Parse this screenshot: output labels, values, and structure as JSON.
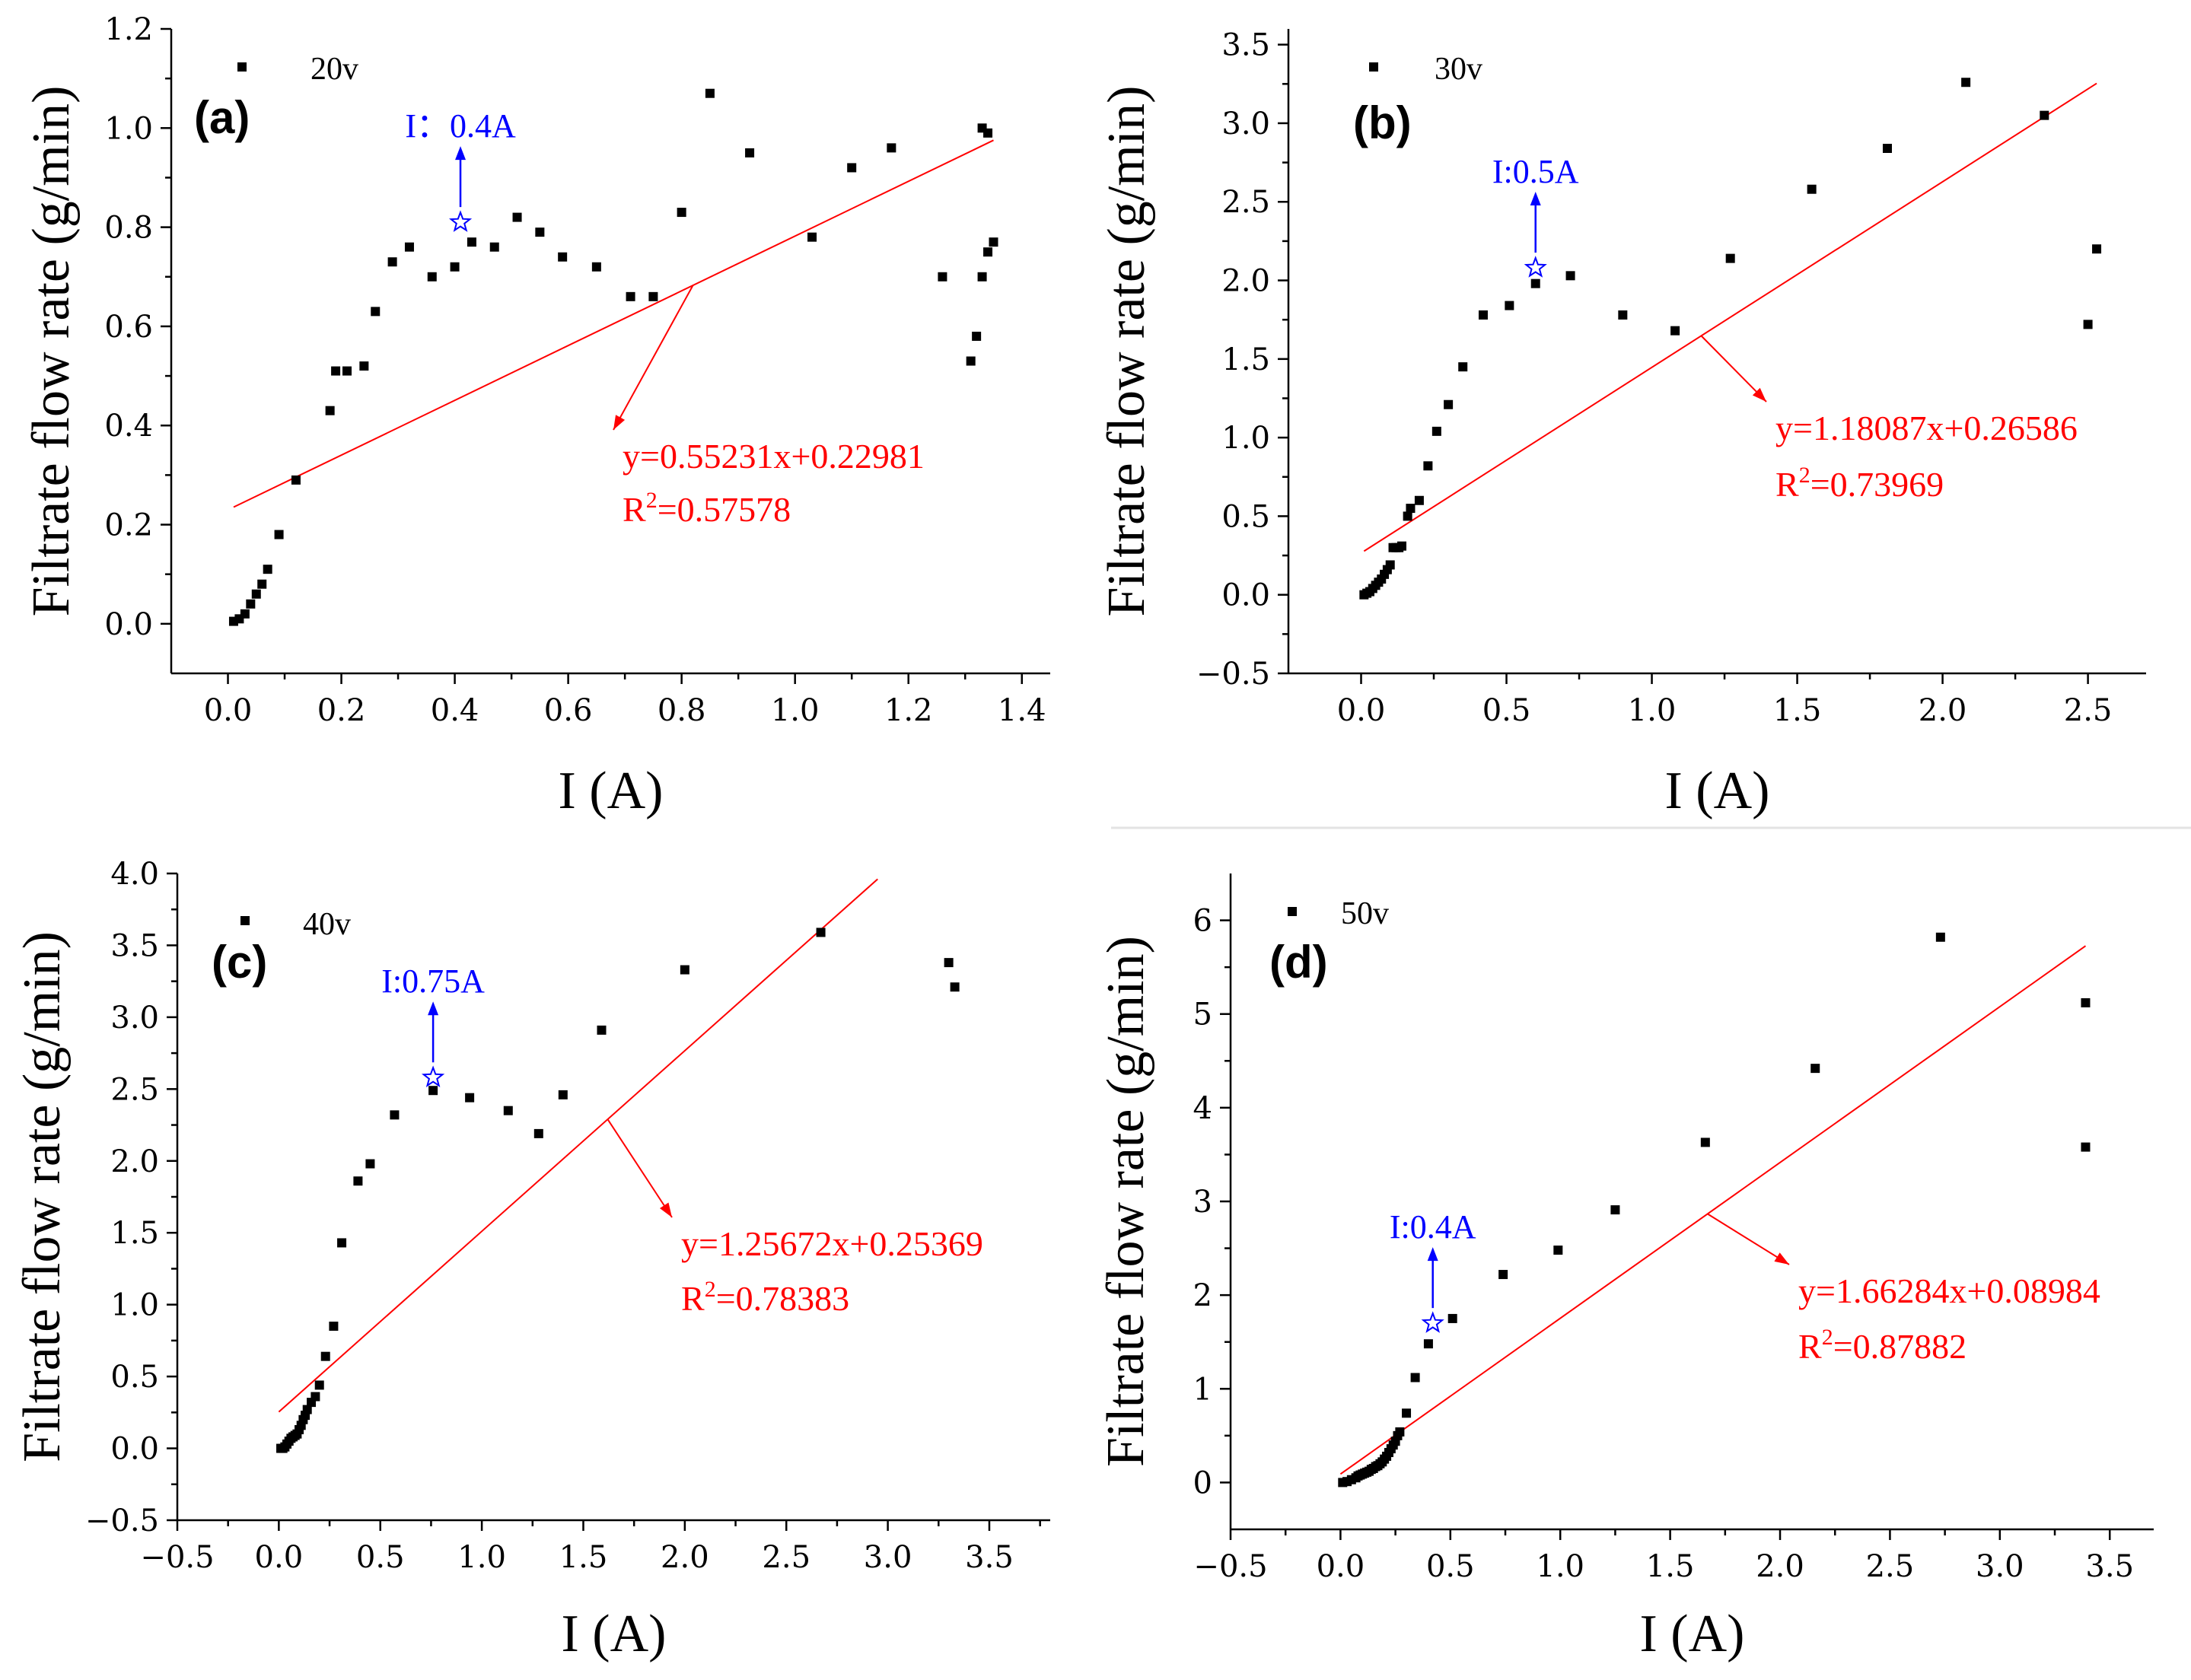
{
  "chart_data": [
    {
      "panel": "(a)",
      "type": "scatter",
      "legend": "20v",
      "xlabel": "I (A)",
      "ylabel": "Filtrate flow rate (g/min)",
      "xlim": [
        -0.1,
        1.45
      ],
      "ylim": [
        -0.1,
        1.2
      ],
      "xticks": [
        0.0,
        0.2,
        0.4,
        0.6,
        0.8,
        1.0,
        1.2,
        1.4
      ],
      "xtick_labels": [
        "0.0",
        "0.2",
        "0.4",
        "0.6",
        "0.8",
        "1.0",
        "1.2",
        "1.4"
      ],
      "yticks": [
        0.0,
        0.2,
        0.4,
        0.6,
        0.8,
        1.0,
        1.2
      ],
      "ytick_labels": [
        "0.0",
        "0.2",
        "0.4",
        "0.6",
        "0.8",
        "1.0",
        "1.2"
      ],
      "series": [
        {
          "name": "20v",
          "x": [
            0.01,
            0.02,
            0.03,
            0.04,
            0.05,
            0.06,
            0.07,
            0.09,
            0.12,
            0.18,
            0.19,
            0.21,
            0.24,
            0.26,
            0.29,
            0.32,
            0.36,
            0.4,
            0.43,
            0.47,
            0.51,
            0.55,
            0.59,
            0.65,
            0.71,
            0.75,
            0.8,
            0.85,
            0.92,
            1.03,
            1.1,
            1.17,
            1.26,
            1.31,
            1.32,
            1.33,
            1.33,
            1.34,
            1.34,
            1.35
          ],
          "y": [
            0.005,
            0.01,
            0.02,
            0.04,
            0.06,
            0.08,
            0.11,
            0.18,
            0.29,
            0.43,
            0.51,
            0.51,
            0.52,
            0.63,
            0.73,
            0.76,
            0.7,
            0.72,
            0.77,
            0.76,
            0.82,
            0.79,
            0.74,
            0.72,
            0.66,
            0.66,
            0.83,
            1.07,
            0.95,
            0.78,
            0.92,
            0.96,
            0.7,
            0.53,
            0.58,
            0.7,
            1.0,
            0.75,
            0.99,
            0.77
          ]
        }
      ],
      "fit": {
        "slope": 0.55231,
        "intercept": 0.22981,
        "x_range": [
          0.01,
          1.35
        ],
        "equation": "y=0.55231x+0.22981",
        "r2_label": "R",
        "r2_value": "=0.57578",
        "pointer_from": 0.82
      },
      "annotation": {
        "text": "I：0.4A",
        "x": 0.41,
        "y": 0.81
      }
    },
    {
      "panel": "(b)",
      "type": "scatter",
      "legend": "30v",
      "xlabel": "I (A)",
      "ylabel": "Filtrate flow rate (g/min)",
      "xlim": [
        -0.25,
        2.7
      ],
      "ylim": [
        -0.5,
        3.6
      ],
      "xticks": [
        0.0,
        0.5,
        1.0,
        1.5,
        2.0,
        2.5
      ],
      "xtick_labels": [
        "0.0",
        "0.5",
        "1.0",
        "1.5",
        "2.0",
        "2.5"
      ],
      "yticks": [
        -0.5,
        0.0,
        0.5,
        1.0,
        1.5,
        2.0,
        2.5,
        3.0,
        3.5
      ],
      "ytick_labels": [
        "−0.5",
        "0.0",
        "0.5",
        "1.0",
        "1.5",
        "2.0",
        "2.5",
        "3.0",
        "3.5"
      ],
      "series": [
        {
          "name": "30v",
          "x": [
            0.01,
            0.02,
            0.03,
            0.04,
            0.05,
            0.06,
            0.07,
            0.08,
            0.09,
            0.1,
            0.11,
            0.12,
            0.13,
            0.14,
            0.16,
            0.17,
            0.2,
            0.23,
            0.26,
            0.3,
            0.35,
            0.42,
            0.51,
            0.6,
            0.72,
            0.9,
            1.08,
            1.27,
            1.55,
            1.81,
            2.08,
            2.35,
            2.5,
            2.53
          ],
          "y": [
            0.0,
            0.01,
            0.02,
            0.04,
            0.06,
            0.08,
            0.1,
            0.13,
            0.16,
            0.19,
            0.3,
            0.3,
            0.3,
            0.31,
            0.5,
            0.55,
            0.6,
            0.82,
            1.04,
            1.21,
            1.45,
            1.78,
            1.84,
            1.98,
            2.03,
            1.78,
            1.68,
            2.14,
            2.58,
            2.84,
            3.26,
            3.05,
            1.72,
            2.2
          ]
        }
      ],
      "fit": {
        "slope": 1.18087,
        "intercept": 0.26586,
        "x_range": [
          0.01,
          2.53
        ],
        "equation": "y=1.18087x+0.26586",
        "r2_label": "R",
        "r2_value": "=0.73969",
        "pointer_from": 1.17
      },
      "annotation": {
        "text": "I:0.5A",
        "x": 0.6,
        "y": 2.08
      }
    },
    {
      "panel": "(c)",
      "type": "scatter",
      "legend": "40v",
      "xlabel": "I (A)",
      "ylabel": "Filtrate flow rate (g/min)",
      "xlim": [
        -0.5,
        3.8
      ],
      "ylim": [
        -0.5,
        4.0
      ],
      "xticks": [
        -0.5,
        0.0,
        0.5,
        1.0,
        1.5,
        2.0,
        2.5,
        3.0,
        3.5
      ],
      "xtick_labels": [
        "−0.5",
        "0.0",
        "0.5",
        "1.0",
        "1.5",
        "2.0",
        "2.5",
        "3.0",
        "3.5"
      ],
      "yticks": [
        -0.5,
        0.0,
        0.5,
        1.0,
        1.5,
        2.0,
        2.5,
        3.0,
        3.5,
        4.0
      ],
      "ytick_labels": [
        "−0.5",
        "0.0",
        "0.5",
        "1.0",
        "1.5",
        "2.0",
        "2.5",
        "3.0",
        "3.5",
        "4.0"
      ],
      "series": [
        {
          "name": "40v",
          "x": [
            0.01,
            0.02,
            0.03,
            0.04,
            0.05,
            0.06,
            0.07,
            0.08,
            0.09,
            0.1,
            0.11,
            0.12,
            0.13,
            0.14,
            0.16,
            0.18,
            0.2,
            0.23,
            0.27,
            0.31,
            0.39,
            0.45,
            0.57,
            0.76,
            0.94,
            1.13,
            1.28,
            1.4,
            1.59,
            2.0,
            2.67,
            3.3,
            3.33
          ],
          "y": [
            0.0,
            0.0,
            0.01,
            0.03,
            0.05,
            0.07,
            0.08,
            0.09,
            0.1,
            0.13,
            0.16,
            0.2,
            0.23,
            0.27,
            0.32,
            0.36,
            0.44,
            0.64,
            0.85,
            1.43,
            1.86,
            1.98,
            2.32,
            2.49,
            2.44,
            2.35,
            2.19,
            2.46,
            2.91,
            3.33,
            3.59,
            3.38,
            3.21
          ]
        }
      ],
      "fit": {
        "slope": 1.25672,
        "intercept": 0.25369,
        "x_range": [
          0.0,
          2.95
        ],
        "equation": "y=1.25672x+0.25369",
        "r2_label": "R",
        "r2_value": "=0.78383",
        "pointer_from": 1.62
      },
      "annotation": {
        "text": "I:0.75A",
        "x": 0.76,
        "y": 2.58
      }
    },
    {
      "panel": "(d)",
      "type": "scatter",
      "legend": "50v",
      "xlabel": "I (A)",
      "ylabel": "Filtrate flow rate (g/min)",
      "xlim": [
        -0.5,
        3.7
      ],
      "ylim": [
        -0.5,
        6.5
      ],
      "xticks": [
        -0.5,
        0.0,
        0.5,
        1.0,
        1.5,
        2.0,
        2.5,
        3.0,
        3.5
      ],
      "xtick_labels": [
        "−0.5",
        "0.0",
        "0.5",
        "1.0",
        "1.5",
        "2.0",
        "2.5",
        "3.0",
        "3.5"
      ],
      "yticks": [
        0,
        1,
        2,
        3,
        4,
        5,
        6
      ],
      "ytick_labels": [
        "0",
        "1",
        "2",
        "3",
        "4",
        "5",
        "6"
      ],
      "series": [
        {
          "name": "50v",
          "x": [
            0.01,
            0.03,
            0.05,
            0.07,
            0.08,
            0.09,
            0.1,
            0.11,
            0.12,
            0.13,
            0.14,
            0.15,
            0.16,
            0.17,
            0.18,
            0.19,
            0.2,
            0.21,
            0.22,
            0.23,
            0.24,
            0.25,
            0.26,
            0.27,
            0.3,
            0.34,
            0.4,
            0.51,
            0.74,
            0.99,
            1.25,
            1.66,
            2.16,
            2.73,
            3.39,
            3.39
          ],
          "y": [
            0.0,
            0.01,
            0.03,
            0.05,
            0.07,
            0.08,
            0.09,
            0.1,
            0.11,
            0.12,
            0.14,
            0.15,
            0.17,
            0.18,
            0.2,
            0.22,
            0.25,
            0.28,
            0.32,
            0.36,
            0.4,
            0.44,
            0.5,
            0.54,
            0.74,
            1.12,
            1.48,
            1.75,
            2.22,
            2.48,
            2.91,
            3.63,
            4.42,
            5.82,
            5.12,
            3.58
          ]
        }
      ],
      "fit": {
        "slope": 1.66284,
        "intercept": 0.08984,
        "x_range": [
          0.0,
          3.39
        ],
        "equation": "y=1.66284x+0.08984",
        "r2_label": "R",
        "r2_value": "=0.87882",
        "pointer_from": 1.67
      },
      "annotation": {
        "text": "I:0.4A",
        "x": 0.42,
        "y": 1.7
      }
    }
  ]
}
